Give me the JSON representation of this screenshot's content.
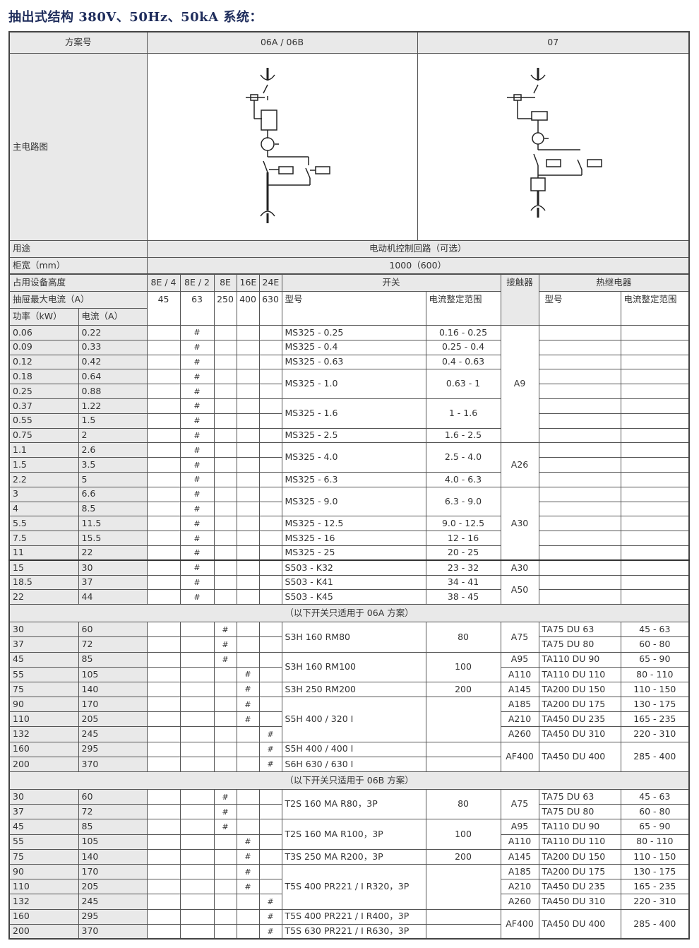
{
  "title": "抽出式结构 380V、50Hz、50kA 系统：",
  "top": {
    "scheme_label": "方案号",
    "schemes": [
      "06A / 06B",
      "07"
    ],
    "circuit_label": "主电路图",
    "usage_label": "用途",
    "usage_value": "电动机控制回路（可选）",
    "width_label": "柜宽（mm）",
    "width_value": "1000（600）"
  },
  "header": {
    "height_label": "占用设备高度",
    "heights": [
      "8E / 4",
      "8E / 2",
      "8E",
      "16E",
      "24E"
    ],
    "switch_label": "开关",
    "contactor_label": "接触器",
    "relay_label": "热继电器",
    "max_current_label": "抽屉最大电流（A）",
    "max_currents": [
      "45",
      "63",
      "250",
      "400",
      "630"
    ],
    "model_label": "型号",
    "range_label": "电流整定范围",
    "relay_model_label": "型号",
    "relay_range_label": "电流整定范围",
    "power_label": "功率（kW）",
    "current_label": "电流（A）"
  },
  "hash_mark": "#",
  "sections": [
    {
      "title": "",
      "rows": [
        [
          "0.06",
          "0.22"
        ],
        [
          "0.09",
          "0.33"
        ],
        [
          "0.12",
          "0.42"
        ],
        [
          "0.18",
          "0.64"
        ],
        [
          "0.25",
          "0.88"
        ],
        [
          "0.37",
          "1.22"
        ],
        [
          "0.55",
          "1.5"
        ],
        [
          "0.75",
          "2"
        ],
        [
          "1.1",
          "2.6"
        ],
        [
          "1.5",
          "3.5"
        ],
        [
          "2.2",
          "5"
        ],
        [
          "3",
          "6.6"
        ],
        [
          "4",
          "8.5"
        ],
        [
          "5.5",
          "11.5"
        ],
        [
          "7.5",
          "15.5"
        ],
        [
          "11",
          "22"
        ],
        [
          "15",
          "30"
        ],
        [
          "18.5",
          "37"
        ],
        [
          "22",
          "44"
        ]
      ],
      "hash_columns": [
        1,
        1,
        1,
        1,
        1,
        1,
        1,
        1,
        1,
        1,
        1,
        1,
        1,
        1,
        1,
        1,
        1,
        1,
        1
      ],
      "thick_before": [
        16
      ],
      "switches": [
        {
          "model": "MS325 - 0.25",
          "range": "0.16 - 0.25",
          "span": 1
        },
        {
          "model": "MS325 - 0.4",
          "range": "0.25 - 0.4",
          "span": 1
        },
        {
          "model": "MS325 - 0.63",
          "range": "0.4 - 0.63",
          "span": 1
        },
        {
          "model": "MS325 - 1.0",
          "range": "0.63 - 1",
          "span": 2
        },
        {
          "model": "MS325 - 1.6",
          "range": "1 - 1.6",
          "span": 2
        },
        {
          "model": "MS325 - 2.5",
          "range": "1.6 - 2.5",
          "span": 1
        },
        {
          "model": "MS325 - 4.0",
          "range": "2.5 - 4.0",
          "span": 2
        },
        {
          "model": "MS325 - 6.3",
          "range": "4.0 - 6.3",
          "span": 1
        },
        {
          "model": "MS325 - 9.0",
          "range": "6.3 - 9.0",
          "span": 2
        },
        {
          "model": "MS325 - 12.5",
          "range": "9.0 - 12.5",
          "span": 1
        },
        {
          "model": "MS325 - 16",
          "range": "12 - 16",
          "span": 1
        },
        {
          "model": "MS325 - 25",
          "range": "20 - 25",
          "span": 1
        },
        {
          "model": "S503 - K32",
          "range": "23 - 32",
          "span": 1
        },
        {
          "model": "S503 - K41",
          "range": "34 - 41",
          "span": 1
        },
        {
          "model": "S503 - K45",
          "range": "38 - 45",
          "span": 1
        }
      ],
      "contactors": [
        {
          "label": "A9",
          "span": 8
        },
        {
          "label": "A26",
          "span": 3
        },
        {
          "label": "A30",
          "span": 5
        },
        {
          "label": "A30",
          "span": 1
        },
        {
          "label": "A50",
          "span": 2
        }
      ],
      "relays": [
        {
          "model": "",
          "range": "",
          "span": 1
        },
        {
          "model": "",
          "range": "",
          "span": 1
        },
        {
          "model": "",
          "range": "",
          "span": 1
        },
        {
          "model": "",
          "range": "",
          "span": 1
        },
        {
          "model": "",
          "range": "",
          "span": 1
        },
        {
          "model": "",
          "range": "",
          "span": 1
        },
        {
          "model": "",
          "range": "",
          "span": 1
        },
        {
          "model": "",
          "range": "",
          "span": 1
        },
        {
          "model": "",
          "range": "",
          "span": 1
        },
        {
          "model": "",
          "range": "",
          "span": 1
        },
        {
          "model": "",
          "range": "",
          "span": 1
        },
        {
          "model": "",
          "range": "",
          "span": 1
        },
        {
          "model": "",
          "range": "",
          "span": 1
        },
        {
          "model": "",
          "range": "",
          "span": 1
        },
        {
          "model": "",
          "range": "",
          "span": 1
        },
        {
          "model": "",
          "range": "",
          "span": 1
        },
        {
          "model": "",
          "range": "",
          "span": 1
        },
        {
          "model": "",
          "range": "",
          "span": 1
        },
        {
          "model": "",
          "range": "",
          "span": 1
        }
      ]
    },
    {
      "title": "（以下开关只适用于 06A 方案）",
      "rows": [
        [
          "30",
          "60"
        ],
        [
          "37",
          "72"
        ],
        [
          "45",
          "85"
        ],
        [
          "55",
          "105"
        ],
        [
          "75",
          "140"
        ],
        [
          "90",
          "170"
        ],
        [
          "110",
          "205"
        ],
        [
          "132",
          "245"
        ],
        [
          "160",
          "295"
        ],
        [
          "200",
          "370"
        ]
      ],
      "hash_columns": [
        2,
        2,
        2,
        3,
        3,
        3,
        3,
        4,
        4,
        4
      ],
      "thick_before": [],
      "switches": [
        {
          "model": "S3H 160 RM80",
          "range": "80",
          "span": 2
        },
        {
          "model": "S3H 160 RM100",
          "range": "100",
          "span": 2
        },
        {
          "model": "S3H 250 RM200",
          "range": "200",
          "span": 1
        },
        {
          "model": "S5H 400 / 320 I",
          "range": "",
          "span": 3
        },
        {
          "model": "S5H 400 / 400 I",
          "range": "",
          "span": 1
        },
        {
          "model": "S6H 630 / 630 I",
          "range": "",
          "span": 1
        }
      ],
      "contactors": [
        {
          "label": "A75",
          "span": 2
        },
        {
          "label": "A95",
          "span": 1
        },
        {
          "label": "A110",
          "span": 1
        },
        {
          "label": "A145",
          "span": 1
        },
        {
          "label": "A185",
          "span": 1
        },
        {
          "label": "A210",
          "span": 1
        },
        {
          "label": "A260",
          "span": 1
        },
        {
          "label": "AF400",
          "span": 2
        }
      ],
      "relays": [
        {
          "model": "TA75 DU 63",
          "range": "45 - 63",
          "span": 1
        },
        {
          "model": "TA75 DU 80",
          "range": "60 - 80",
          "span": 1
        },
        {
          "model": "TA110 DU 90",
          "range": "65 - 90",
          "span": 1
        },
        {
          "model": "TA110 DU 110",
          "range": "80 - 110",
          "span": 1
        },
        {
          "model": "TA200 DU 150",
          "range": "110 - 150",
          "span": 1
        },
        {
          "model": "TA200 DU 175",
          "range": "130 - 175",
          "span": 1
        },
        {
          "model": "TA450 DU 235",
          "range": "165 - 235",
          "span": 1
        },
        {
          "model": "TA450 DU 310",
          "range": "220 - 310",
          "span": 1
        },
        {
          "model": "TA450 DU 400",
          "range": "285 - 400",
          "span": 2
        }
      ]
    },
    {
      "title": "（以下开关只适用于 06B 方案）",
      "rows": [
        [
          "30",
          "60"
        ],
        [
          "37",
          "72"
        ],
        [
          "45",
          "85"
        ],
        [
          "55",
          "105"
        ],
        [
          "75",
          "140"
        ],
        [
          "90",
          "170"
        ],
        [
          "110",
          "205"
        ],
        [
          "132",
          "245"
        ],
        [
          "160",
          "295"
        ],
        [
          "200",
          "370"
        ]
      ],
      "hash_columns": [
        2,
        2,
        2,
        3,
        3,
        3,
        3,
        4,
        4,
        4
      ],
      "thick_before": [],
      "switches": [
        {
          "model": "T2S 160 MA R80，3P",
          "range": "80",
          "span": 2
        },
        {
          "model": "T2S 160 MA R100，3P",
          "range": "100",
          "span": 2
        },
        {
          "model": "T3S 250 MA R200，3P",
          "range": "200",
          "span": 1
        },
        {
          "model": "T5S 400 PR221 / I R320，3P",
          "range": "",
          "span": 3
        },
        {
          "model": "T5S 400 PR221 / I R400，3P",
          "range": "",
          "span": 1
        },
        {
          "model": "T5S 630 PR221 / I R630，3P",
          "range": "",
          "span": 1
        }
      ],
      "contactors": [
        {
          "label": "A75",
          "span": 2
        },
        {
          "label": "A95",
          "span": 1
        },
        {
          "label": "A110",
          "span": 1
        },
        {
          "label": "A145",
          "span": 1
        },
        {
          "label": "A185",
          "span": 1
        },
        {
          "label": "A210",
          "span": 1
        },
        {
          "label": "A260",
          "span": 1
        },
        {
          "label": "AF400",
          "span": 2
        }
      ],
      "relays": [
        {
          "model": "TA75 DU 63",
          "range": "45 - 63",
          "span": 1
        },
        {
          "model": "TA75 DU 80",
          "range": "60 - 80",
          "span": 1
        },
        {
          "model": "TA110 DU 90",
          "range": "65 - 90",
          "span": 1
        },
        {
          "model": "TA110 DU 110",
          "range": "80 - 110",
          "span": 1
        },
        {
          "model": "TA200 DU 150",
          "range": "110 - 150",
          "span": 1
        },
        {
          "model": "TA200 DU 175",
          "range": "130 - 175",
          "span": 1
        },
        {
          "model": "TA450 DU 235",
          "range": "165 - 235",
          "span": 1
        },
        {
          "model": "TA450 DU 310",
          "range": "220 - 310",
          "span": 1
        },
        {
          "model": "TA450 DU 400",
          "range": "285 - 400",
          "span": 2
        }
      ]
    }
  ]
}
